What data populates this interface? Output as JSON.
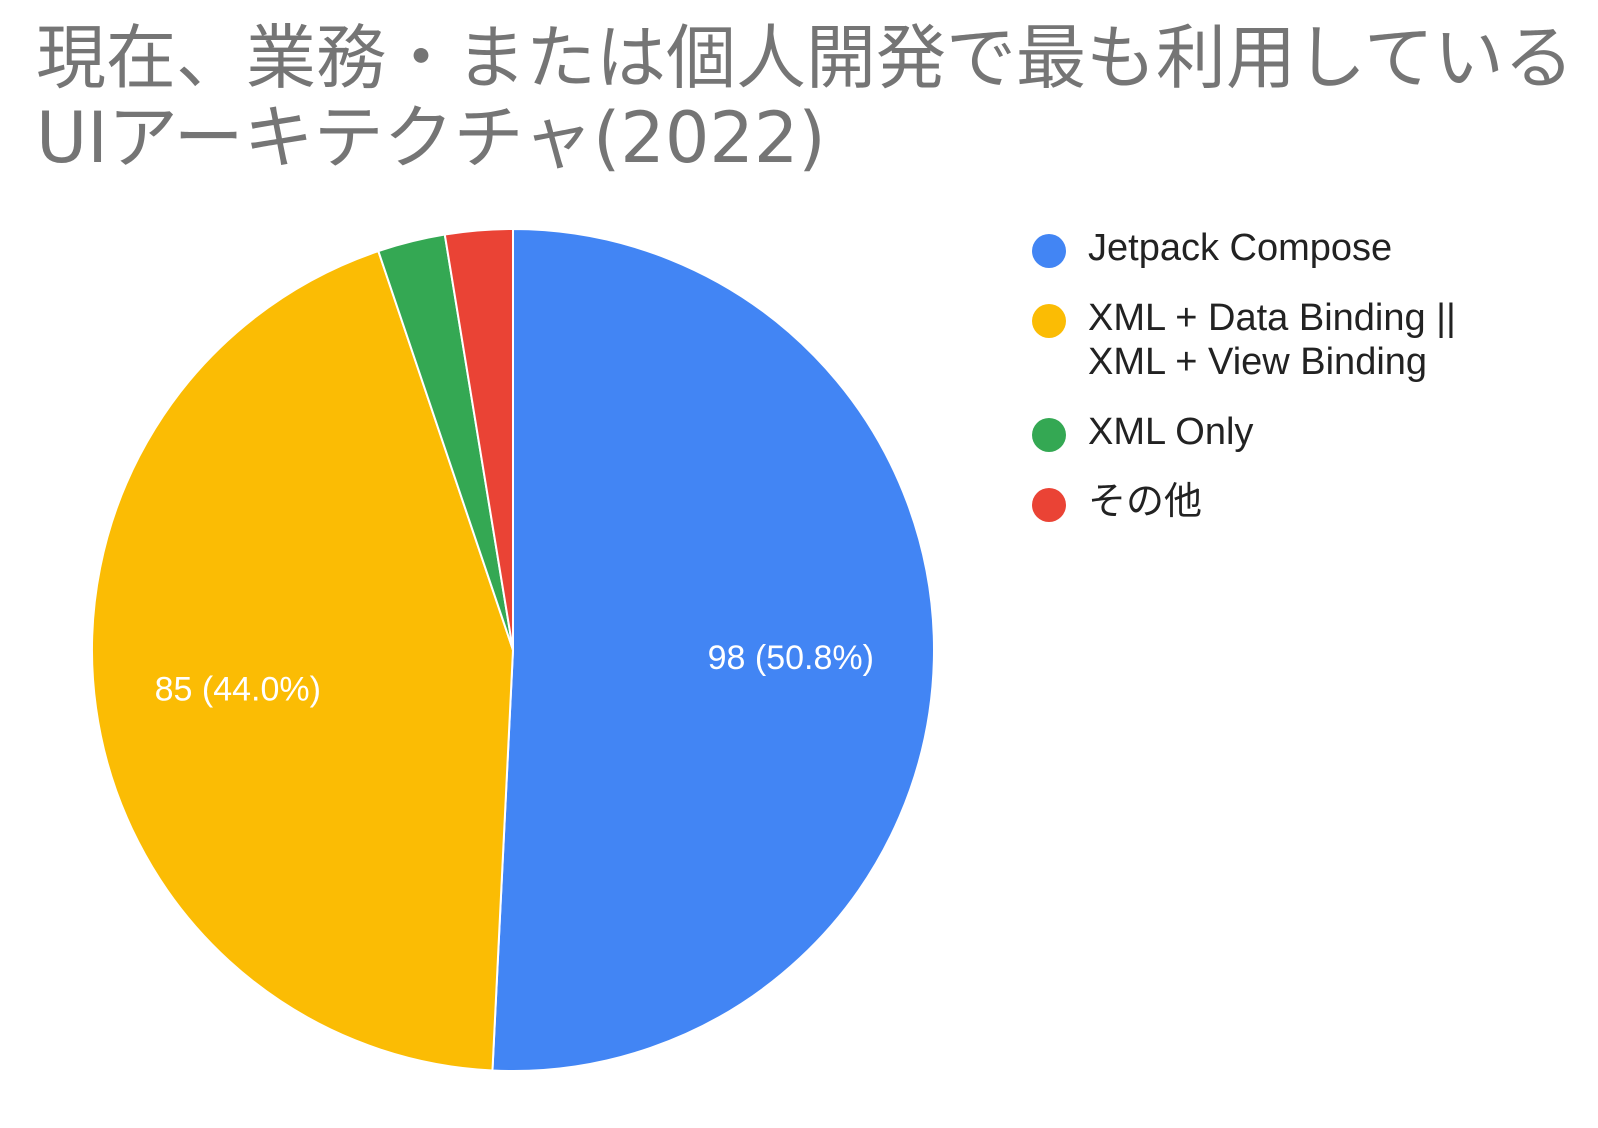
{
  "chart_data": {
    "type": "pie",
    "title": "現在、業務・または個人開発で最も利用しているUIアーキテクチャ(2022)",
    "categories": [
      "Jetpack Compose",
      "XML + Data Binding || XML + View Binding",
      "XML Only",
      "その他"
    ],
    "values": [
      98,
      85,
      5,
      5
    ],
    "data_labels": [
      "98 (50.8%)",
      "85 (44.0%)",
      "",
      ""
    ],
    "colors": [
      "#4285F4",
      "#FBBC04",
      "#34A853",
      "#EA4335"
    ],
    "legend_position": "right"
  },
  "legend_labels": [
    "Jetpack Compose",
    "XML + Data Binding ||\nXML + View Binding",
    "XML Only",
    "その他"
  ]
}
